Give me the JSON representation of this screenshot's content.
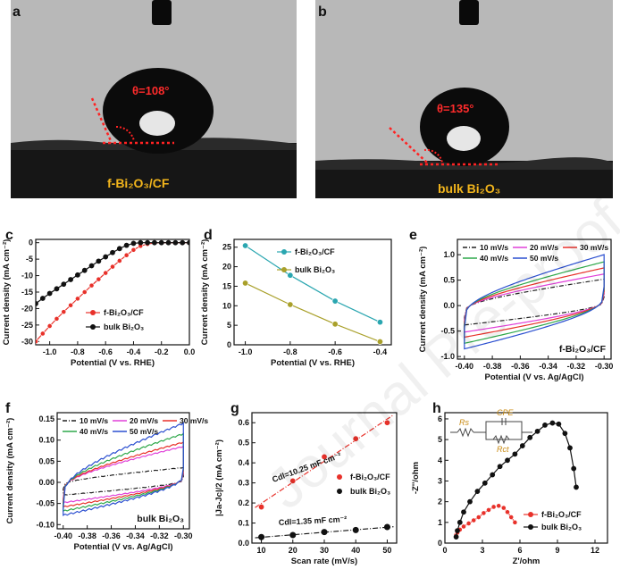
{
  "watermark": "Journal Pre-proof",
  "photos": [
    {
      "letter": "a",
      "angle_label": "θ=108°",
      "caption": "f-Bi₂O₃/CF"
    },
    {
      "letter": "b",
      "angle_label": "θ=135°",
      "caption": "bulk Bi₂O₃"
    }
  ],
  "chart_data": [
    {
      "letter": "c",
      "type": "line",
      "xlabel": "Potential (V vs. RHE)",
      "ylabel": "Current density (mA cm⁻²)",
      "xlim": [
        -1.1,
        0.0
      ],
      "ylim": [
        -31,
        1
      ],
      "xticks": [
        -1.0,
        -0.8,
        -0.6,
        -0.4,
        -0.2,
        0.0
      ],
      "yticks": [
        -30,
        -25,
        -20,
        -15,
        -10,
        -5,
        0
      ],
      "tick_labels_x": [
        "-1.0",
        "-0.8",
        "-0.6",
        "-0.4",
        "-0.2",
        "0.0"
      ],
      "tick_labels_y": [
        "-30",
        "-25",
        "-20",
        "-15",
        "-10",
        "-5",
        "0"
      ],
      "legend_position": "bottom-right",
      "series": [
        {
          "name": "f-Bi₂O₃/CF",
          "color": "#e8312a",
          "marker": "circle",
          "x": [
            -1.1,
            -1.05,
            -1.0,
            -0.95,
            -0.9,
            -0.85,
            -0.8,
            -0.75,
            -0.7,
            -0.65,
            -0.6,
            -0.55,
            -0.5,
            -0.45,
            -0.4,
            -0.35,
            -0.3,
            -0.25,
            -0.2,
            -0.15,
            -0.1,
            -0.05,
            0.0
          ],
          "y": [
            -30,
            -27.6,
            -25.3,
            -23.1,
            -21,
            -19,
            -17,
            -15,
            -13,
            -11.1,
            -9.2,
            -7.3,
            -5.5,
            -3.8,
            -2.2,
            -1,
            -0.4,
            -0.1,
            0,
            0,
            0,
            0,
            0
          ]
        },
        {
          "name": "bulk Bi₂O₃",
          "color": "#111111",
          "marker": "circle",
          "x": [
            -1.1,
            -1.05,
            -1.0,
            -0.95,
            -0.9,
            -0.85,
            -0.8,
            -0.75,
            -0.7,
            -0.65,
            -0.6,
            -0.55,
            -0.5,
            -0.45,
            -0.4,
            -0.35,
            -0.3,
            -0.25,
            -0.2,
            -0.15,
            -0.1,
            -0.05,
            0.0
          ],
          "y": [
            -18.5,
            -16.9,
            -15.4,
            -14,
            -12.6,
            -11.2,
            -9.8,
            -8.4,
            -7,
            -5.6,
            -4.3,
            -3,
            -1.8,
            -0.8,
            -0.2,
            0,
            0,
            0,
            0,
            0,
            0,
            0,
            0
          ]
        }
      ]
    },
    {
      "letter": "d",
      "type": "line",
      "xlabel": "Potential (V vs. RHE)",
      "ylabel": "Current density (mA cm⁻²)",
      "xlim": [
        -1.05,
        -0.35
      ],
      "ylim": [
        0,
        27
      ],
      "xticks": [
        -1.0,
        -0.8,
        -0.6,
        -0.4
      ],
      "yticks": [
        0,
        5,
        10,
        15,
        20,
        25
      ],
      "tick_labels_x": [
        "-1.0",
        "-0.8",
        "-0.6",
        "-0.4"
      ],
      "tick_labels_y": [
        "0",
        "5",
        "10",
        "15",
        "20",
        "25"
      ],
      "legend_position": "top-right",
      "series": [
        {
          "name": "f-Bi₂O₃/CF",
          "color": "#2aa6b0",
          "marker": "circle",
          "x": [
            -1.0,
            -0.8,
            -0.6,
            -0.4
          ],
          "y": [
            25.4,
            17.8,
            11.2,
            5.8
          ]
        },
        {
          "name": "bulk Bi₂O₃",
          "color": "#a9a02a",
          "marker": "circle",
          "x": [
            -1.0,
            -0.8,
            -0.6,
            -0.4
          ],
          "y": [
            15.8,
            10.3,
            5.3,
            0.8
          ]
        }
      ]
    },
    {
      "letter": "e",
      "type": "line",
      "xlabel": "Potential (V vs. Ag/AgCl)",
      "ylabel": "Current density (mA cm⁻²)",
      "xlim": [
        -0.405,
        -0.295
      ],
      "ylim": [
        -1.05,
        1.3
      ],
      "xticks": [
        -0.4,
        -0.38,
        -0.36,
        -0.34,
        -0.32,
        -0.3
      ],
      "yticks": [
        -1.0,
        -0.5,
        0.0,
        0.5,
        1.0
      ],
      "tick_labels_x": [
        "-0.40",
        "-0.38",
        "-0.36",
        "-0.34",
        "-0.32",
        "-0.30"
      ],
      "tick_labels_y": [
        "-1.0",
        "-0.5",
        "0.0",
        "0.5",
        "1.0"
      ],
      "annotation": "f-Bi₂O₃/CF",
      "legend_position": "top",
      "series": [
        {
          "name": "10 mV/s",
          "color": "#222222",
          "dash": "dashdot",
          "jmin": -0.38,
          "jmax": 0.52
        },
        {
          "name": "20 mV/s",
          "color": "#e040d8",
          "jmin": -0.52,
          "jmax": 0.62
        },
        {
          "name": "30 mV/s",
          "color": "#e8312a",
          "jmin": -0.62,
          "jmax": 0.74
        },
        {
          "name": "40 mV/s",
          "color": "#2ea84a",
          "jmin": -0.74,
          "jmax": 0.86
        },
        {
          "name": "50 mV/s",
          "color": "#2b4fd0",
          "jmin": -0.85,
          "jmax": 1.0
        }
      ]
    },
    {
      "letter": "f",
      "type": "line",
      "xlabel": "Potential (V vs. Ag/AgCl)",
      "ylabel": "Current density (mA cm⁻²)",
      "xlim": [
        -0.405,
        -0.295
      ],
      "ylim": [
        -0.11,
        0.165
      ],
      "xticks": [
        -0.4,
        -0.38,
        -0.36,
        -0.34,
        -0.32,
        -0.3
      ],
      "yticks": [
        -0.1,
        -0.05,
        0.0,
        0.05,
        0.1,
        0.15
      ],
      "tick_labels_x": [
        "-0.40",
        "-0.38",
        "-0.36",
        "-0.34",
        "-0.32",
        "-0.30"
      ],
      "tick_labels_y": [
        "-0.10",
        "-0.05",
        "0.00",
        "0.05",
        "0.10",
        "0.15"
      ],
      "annotation": "bulk Bi₂O₃",
      "legend_position": "top",
      "series": [
        {
          "name": "10 mV/s",
          "color": "#222222",
          "dash": "dashdot",
          "jmin": -0.03,
          "jmax": 0.035
        },
        {
          "name": "20 mV/s",
          "color": "#e040d8",
          "jmin": -0.048,
          "jmax": 0.085
        },
        {
          "name": "30 mV/s",
          "color": "#e8312a",
          "jmin": -0.058,
          "jmax": 0.095
        },
        {
          "name": "40 mV/s",
          "color": "#2ea84a",
          "jmin": -0.068,
          "jmax": 0.115
        },
        {
          "name": "50 mV/s",
          "color": "#2b4fd0",
          "jmin": -0.078,
          "jmax": 0.14
        }
      ]
    },
    {
      "letter": "g",
      "type": "scatter",
      "xlabel": "Scan rate (mV/s)",
      "ylabel": "|Ja-Jc|/2 (mA cm⁻²)",
      "xlim": [
        7,
        53
      ],
      "ylim": [
        0,
        0.65
      ],
      "xticks": [
        10,
        20,
        30,
        40,
        50
      ],
      "yticks": [
        0.0,
        0.1,
        0.2,
        0.3,
        0.4,
        0.5,
        0.6
      ],
      "tick_labels_x": [
        "10",
        "20",
        "30",
        "40",
        "50"
      ],
      "tick_labels_y": [
        "0.0",
        "0.1",
        "0.2",
        "0.3",
        "0.4",
        "0.5",
        "0.6"
      ],
      "legend_position": "right",
      "series": [
        {
          "name": "f-Bi₂O₃/CF",
          "color": "#e8312a",
          "fit_label": "Cdl=10.25 mF cm⁻²",
          "x": [
            10,
            20,
            30,
            40,
            50
          ],
          "y": [
            0.18,
            0.31,
            0.43,
            0.52,
            0.6
          ]
        },
        {
          "name": "bulk Bi₂O₃",
          "color": "#111111",
          "fit_label": "Cdl=1.35 mF cm⁻²",
          "x": [
            10,
            20,
            30,
            40,
            50
          ],
          "y": [
            0.03,
            0.04,
            0.055,
            0.065,
            0.08
          ]
        }
      ]
    },
    {
      "letter": "h",
      "type": "scatter",
      "xlabel": "Z'/ohm",
      "ylabel": "-Z''/ohm",
      "xlim": [
        0,
        13
      ],
      "ylim": [
        0,
        6.3
      ],
      "xticks": [
        0,
        3,
        6,
        9,
        12
      ],
      "yticks": [
        0,
        1,
        2,
        3,
        4,
        5,
        6
      ],
      "tick_labels_x": [
        "0",
        "3",
        "6",
        "9",
        "12"
      ],
      "tick_labels_y": [
        "0",
        "1",
        "2",
        "3",
        "4",
        "5",
        "6"
      ],
      "legend_position": "bottom-right",
      "circuit_labels": [
        "Rs",
        "CPE",
        "Rct"
      ],
      "series": [
        {
          "name": "f-Bi₂O₃/CF",
          "color": "#e8312a",
          "x": [
            0.9,
            1.0,
            1.2,
            1.5,
            1.9,
            2.3,
            2.7,
            3.1,
            3.5,
            3.9,
            4.3,
            4.7,
            5.0,
            5.3,
            5.6
          ],
          "y": [
            0.4,
            0.5,
            0.65,
            0.8,
            0.95,
            1.1,
            1.25,
            1.45,
            1.6,
            1.75,
            1.8,
            1.7,
            1.5,
            1.25,
            1.0
          ]
        },
        {
          "name": "bulk Bi₂O₃",
          "color": "#111111",
          "x": [
            0.9,
            1.0,
            1.2,
            1.5,
            2.0,
            2.6,
            3.2,
            3.8,
            4.4,
            5.0,
            5.6,
            6.2,
            6.8,
            7.4,
            8.0,
            8.6,
            9.1,
            9.6,
            10.0,
            10.3,
            10.5
          ],
          "y": [
            0.3,
            0.6,
            1.0,
            1.5,
            2.0,
            2.5,
            2.9,
            3.3,
            3.7,
            4.0,
            4.3,
            4.7,
            5.1,
            5.4,
            5.7,
            5.8,
            5.75,
            5.3,
            4.6,
            3.6,
            2.7
          ]
        }
      ]
    }
  ]
}
